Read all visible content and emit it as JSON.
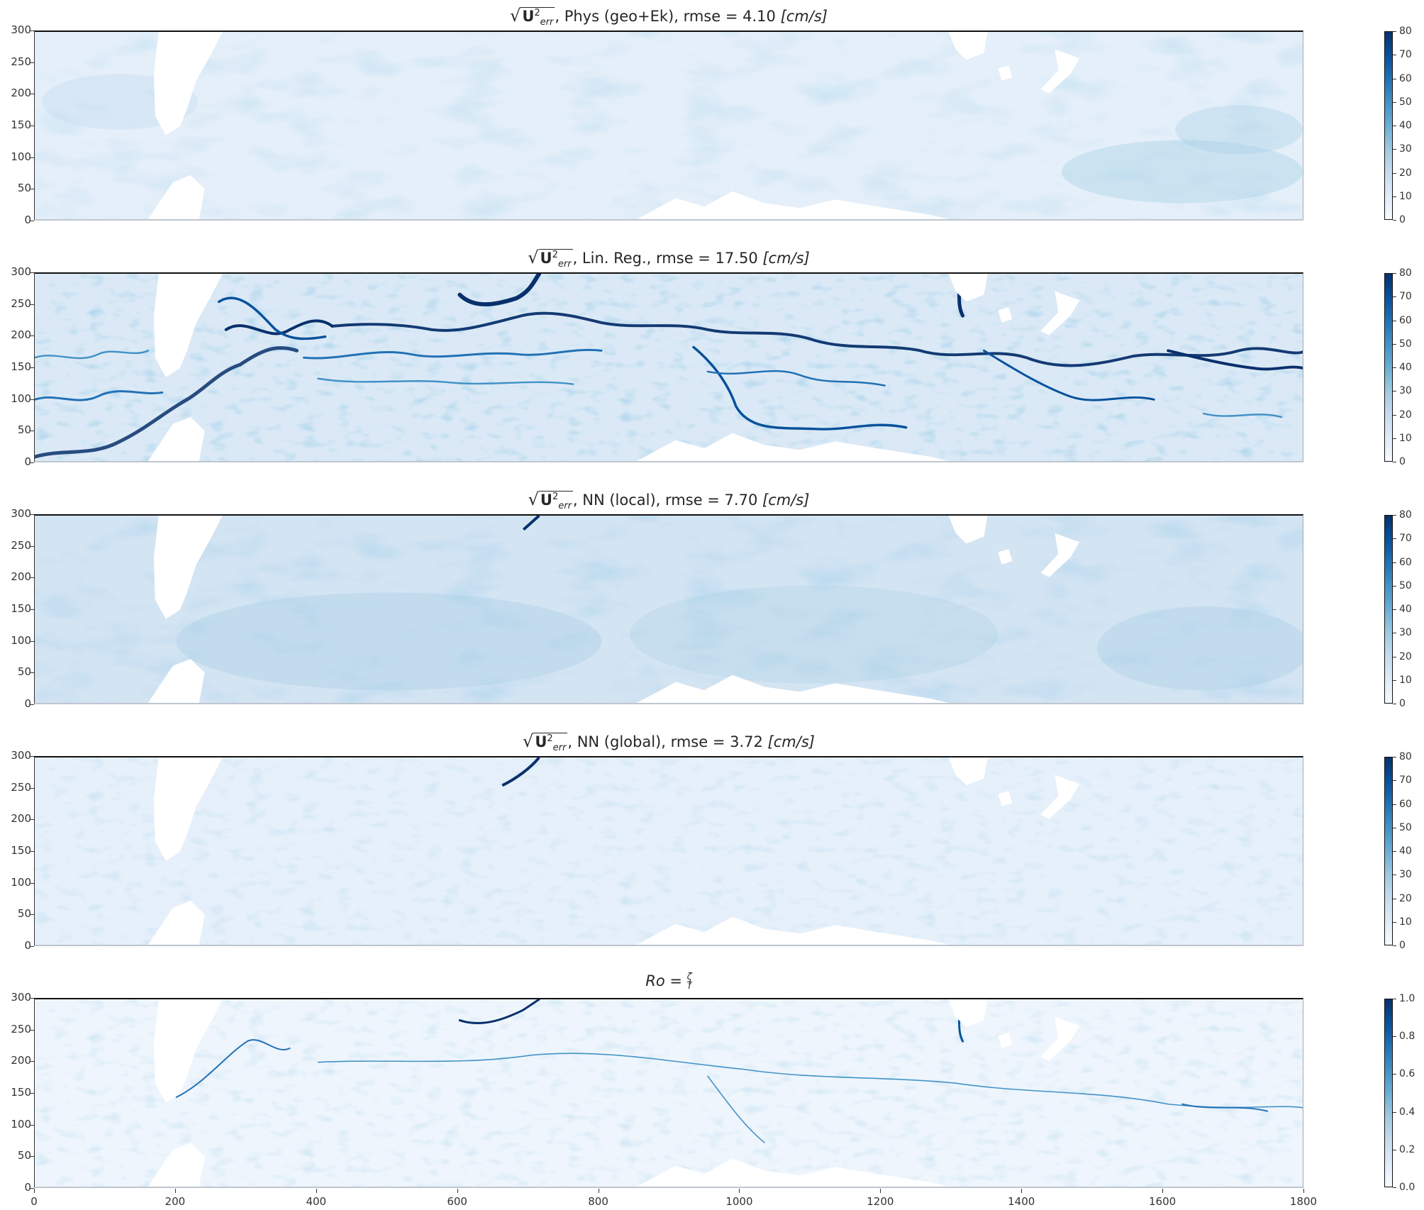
{
  "figure": {
    "colormap": "Blues",
    "colors": {
      "low": "#f7fbff",
      "mid": "#6baed6",
      "high": "#08306b",
      "land": "#ffffff"
    },
    "x_ticks": [
      "0",
      "200",
      "400",
      "600",
      "800",
      "1000",
      "1200",
      "1400",
      "1600",
      "1800"
    ],
    "y_ticks": [
      "0",
      "50",
      "100",
      "150",
      "200",
      "250",
      "300"
    ]
  },
  "panels": [
    {
      "title_prefix": "√",
      "title_symbol": "U",
      "title_sup": "2",
      "title_sub": "err",
      "title_text": ", Phys (geo+Ek), rmse = 4.10 ",
      "title_unit": "[cm/s]",
      "rmse": "4.10",
      "colorbar_ticks": [
        "0",
        "10",
        "20",
        "30",
        "40",
        "50",
        "60",
        "70",
        "80"
      ]
    },
    {
      "title_prefix": "√",
      "title_symbol": "U",
      "title_sup": "2",
      "title_sub": "err",
      "title_text": ", Lin. Reg., rmse = 17.50 ",
      "title_unit": "[cm/s]",
      "rmse": "17.50",
      "colorbar_ticks": [
        "0",
        "10",
        "20",
        "30",
        "40",
        "50",
        "60",
        "70",
        "80"
      ]
    },
    {
      "title_prefix": "√",
      "title_symbol": "U",
      "title_sup": "2",
      "title_sub": "err",
      "title_text": ", NN (local), rmse = 7.70 ",
      "title_unit": "[cm/s]",
      "rmse": "7.70",
      "colorbar_ticks": [
        "0",
        "10",
        "20",
        "30",
        "40",
        "50",
        "60",
        "70",
        "80"
      ]
    },
    {
      "title_prefix": "√",
      "title_symbol": "U",
      "title_sup": "2",
      "title_sub": "err",
      "title_text": ", NN (global), rmse = 3.72 ",
      "title_unit": "[cm/s]",
      "rmse": "3.72",
      "colorbar_ticks": [
        "0",
        "10",
        "20",
        "30",
        "40",
        "50",
        "60",
        "70",
        "80"
      ]
    },
    {
      "title_lhs": "Ro = ",
      "title_num": "ζ",
      "title_den": "f",
      "colorbar_ticks": [
        "0.0",
        "0.2",
        "0.4",
        "0.6",
        "0.8",
        "1.0"
      ]
    }
  ],
  "chart_data": [
    {
      "type": "heatmap",
      "title": "sqrt(U_err^2), Phys (geo+Ek), rmse = 4.10 [cm/s]",
      "xlabel": "",
      "ylabel": "",
      "xlim": [
        0,
        1800
      ],
      "ylim": [
        0,
        300
      ],
      "x_ticks": [
        0,
        200,
        400,
        600,
        800,
        1000,
        1200,
        1400,
        1600,
        1800
      ],
      "y_ticks": [
        0,
        50,
        100,
        150,
        200,
        250,
        300
      ],
      "colorbar": {
        "range": [
          0,
          80
        ],
        "ticks": [
          0,
          10,
          20,
          30,
          40,
          50,
          60,
          70,
          80
        ],
        "cmap": "Blues"
      },
      "rmse": 4.1,
      "description": "Mostly very light error field (values ~0-15 cm/s); slightly higher diffuse error near x=1500-1800, y=30-130."
    },
    {
      "type": "heatmap",
      "title": "sqrt(U_err^2), Lin. Reg., rmse = 17.50 [cm/s]",
      "xlim": [
        0,
        1800
      ],
      "ylim": [
        0,
        300
      ],
      "x_ticks": [
        0,
        200,
        400,
        600,
        800,
        1000,
        1200,
        1400,
        1600,
        1800
      ],
      "y_ticks": [
        0,
        50,
        100,
        150,
        200,
        250,
        300
      ],
      "colorbar": {
        "range": [
          0,
          80
        ],
        "ticks": [
          0,
          10,
          20,
          30,
          40,
          50,
          60,
          70,
          80
        ],
        "cmap": "Blues"
      },
      "rmse": 17.5,
      "description": "Strong dark meandering fronts (values up to ~80 cm/s) following a band from (0,20) through (250,120), (300,200), (700,280), then eastward around y=150-200 down to y=100-130 at x=1800."
    },
    {
      "type": "heatmap",
      "title": "sqrt(U_err^2), NN (local), rmse = 7.70 [cm/s]",
      "xlim": [
        0,
        1800
      ],
      "ylim": [
        0,
        300
      ],
      "x_ticks": [
        0,
        200,
        400,
        600,
        800,
        1000,
        1200,
        1400,
        1600,
        1800
      ],
      "y_ticks": [
        0,
        50,
        100,
        150,
        200,
        250,
        300
      ],
      "colorbar": {
        "range": [
          0,
          80
        ],
        "ticks": [
          0,
          10,
          20,
          30,
          40,
          50,
          60,
          70,
          80
        ],
        "cmap": "Blues"
      },
      "rmse": 7.7,
      "description": "Moderate, smooth broad error (values ~10-25 cm/s) across the domain, slightly higher in the lower half."
    },
    {
      "type": "heatmap",
      "title": "sqrt(U_err^2), NN (global), rmse = 3.72 [cm/s]",
      "xlim": [
        0,
        1800
      ],
      "ylim": [
        0,
        300
      ],
      "x_ticks": [
        0,
        200,
        400,
        600,
        800,
        1000,
        1200,
        1400,
        1600,
        1800
      ],
      "y_ticks": [
        0,
        50,
        100,
        150,
        200,
        250,
        300
      ],
      "colorbar": {
        "range": [
          0,
          80
        ],
        "ticks": [
          0,
          10,
          20,
          30,
          40,
          50,
          60,
          70,
          80
        ],
        "cmap": "Blues"
      },
      "rmse": 3.72,
      "description": "Low error everywhere (values ~0-15 cm/s) with faint filamentary structure; a small dark streak near x=690, y=260-300."
    },
    {
      "type": "heatmap",
      "title": "Ro = zeta / f",
      "xlim": [
        0,
        1800
      ],
      "ylim": [
        0,
        300
      ],
      "x_ticks": [
        0,
        200,
        400,
        600,
        800,
        1000,
        1200,
        1400,
        1600,
        1800
      ],
      "y_ticks": [
        0,
        50,
        100,
        150,
        200,
        250,
        300
      ],
      "colorbar": {
        "range": [
          0.0,
          1.0
        ],
        "ticks": [
          0.0,
          0.2,
          0.4,
          0.6,
          0.8,
          1.0
        ],
        "cmap": "Blues"
      },
      "description": "Rossby number field with fine filaments; higher values (0.4-1.0) along the same frontal band as the Lin. Reg. errors."
    }
  ]
}
